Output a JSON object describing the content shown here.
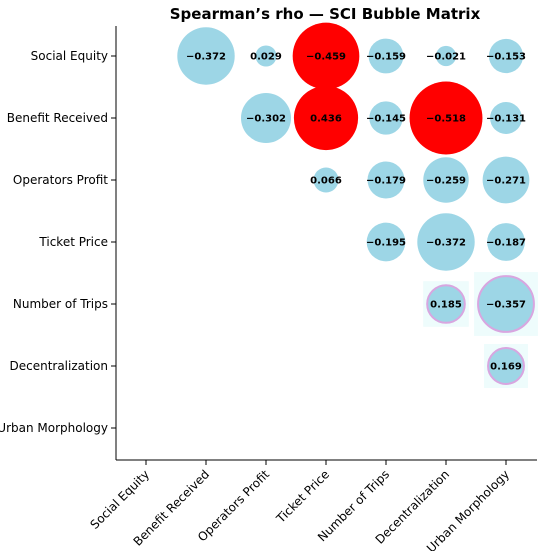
{
  "chart_data": {
    "type": "bubble-matrix",
    "title": "Spearman’s rho — SCI Bubble Matrix",
    "categories": [
      "Social Equity",
      "Benefit Received",
      "Operators Profit",
      "Ticket Price",
      "Number of Trips",
      "Decentralization",
      "Urban Morphology"
    ],
    "cells": [
      {
        "row": "Social Equity",
        "col": "Benefit Received",
        "value": -0.372,
        "label": "−0.372",
        "significant": false
      },
      {
        "row": "Social Equity",
        "col": "Operators Profit",
        "value": 0.029,
        "label": "0.029",
        "significant": false
      },
      {
        "row": "Social Equity",
        "col": "Ticket Price",
        "value": -0.459,
        "label": "−0.459",
        "significant": true
      },
      {
        "row": "Social Equity",
        "col": "Number of Trips",
        "value": -0.159,
        "label": "−0.159",
        "significant": false
      },
      {
        "row": "Social Equity",
        "col": "Decentralization",
        "value": -0.021,
        "label": "−0.021",
        "significant": false
      },
      {
        "row": "Social Equity",
        "col": "Urban Morphology",
        "value": -0.153,
        "label": "−0.153",
        "significant": false
      },
      {
        "row": "Benefit Received",
        "col": "Operators Profit",
        "value": -0.302,
        "label": "−0.302",
        "significant": false
      },
      {
        "row": "Benefit Received",
        "col": "Ticket Price",
        "value": 0.436,
        "label": "0.436",
        "significant": true
      },
      {
        "row": "Benefit Received",
        "col": "Number of Trips",
        "value": -0.145,
        "label": "−0.145",
        "significant": false
      },
      {
        "row": "Benefit Received",
        "col": "Decentralization",
        "value": -0.518,
        "label": "−0.518",
        "significant": true
      },
      {
        "row": "Benefit Received",
        "col": "Urban Morphology",
        "value": -0.131,
        "label": "−0.131",
        "significant": false
      },
      {
        "row": "Operators Profit",
        "col": "Ticket Price",
        "value": 0.066,
        "label": "0.066",
        "significant": false
      },
      {
        "row": "Operators Profit",
        "col": "Number of Trips",
        "value": -0.179,
        "label": "−0.179",
        "significant": false
      },
      {
        "row": "Operators Profit",
        "col": "Decentralization",
        "value": -0.259,
        "label": "−0.259",
        "significant": false
      },
      {
        "row": "Operators Profit",
        "col": "Urban Morphology",
        "value": -0.271,
        "label": "−0.271",
        "significant": false
      },
      {
        "row": "Ticket Price",
        "col": "Number of Trips",
        "value": -0.195,
        "label": "−0.195",
        "significant": false
      },
      {
        "row": "Ticket Price",
        "col": "Decentralization",
        "value": -0.372,
        "label": "−0.372",
        "significant": false
      },
      {
        "row": "Ticket Price",
        "col": "Urban Morphology",
        "value": -0.187,
        "label": "−0.187",
        "significant": false
      },
      {
        "row": "Number of Trips",
        "col": "Decentralization",
        "value": 0.185,
        "label": "0.185",
        "significant": false,
        "highlighted": true
      },
      {
        "row": "Number of Trips",
        "col": "Urban Morphology",
        "value": -0.357,
        "label": "−0.357",
        "significant": false,
        "highlighted": true
      },
      {
        "row": "Decentralization",
        "col": "Urban Morphology",
        "value": 0.169,
        "label": "0.169",
        "significant": false,
        "highlighted": true
      }
    ],
    "colors": {
      "significant": "#ff0000",
      "not_significant": "#9dd6e6",
      "highlight_ring": "#d8a6e0",
      "highlight_bg": "#eefcfc"
    },
    "grid": false,
    "legend": "none"
  }
}
